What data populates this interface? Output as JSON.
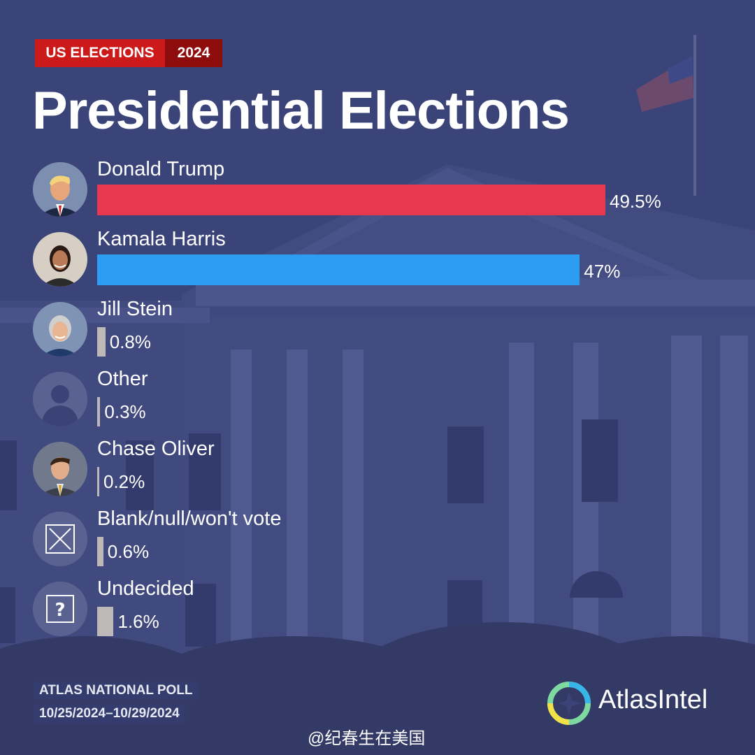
{
  "header": {
    "badge_left": "US ELECTIONS",
    "badge_right": "2024",
    "title": "Presidential Elections"
  },
  "colors": {
    "background": "#3b4479",
    "trump": "#e8384f",
    "harris": "#2d9df1",
    "minor": "#bdb9b9",
    "badge_red": "#cc1a1a",
    "badge_dark_red": "#8f0c0c"
  },
  "chart_data": {
    "type": "bar",
    "orientation": "horizontal",
    "title": "Presidential Elections",
    "categories": [
      "Donald Trump",
      "Kamala Harris",
      "Jill Stein",
      "Other",
      "Chase Oliver",
      "Blank/null/won't vote",
      "Undecided"
    ],
    "values": [
      49.5,
      47,
      0.8,
      0.3,
      0.2,
      0.6,
      1.6
    ],
    "value_labels": [
      "49.5%",
      "47%",
      "0.8%",
      "0.3%",
      "0.2%",
      "0.6%",
      "1.6%"
    ],
    "bar_colors": [
      "#e8384f",
      "#2d9df1",
      "#bdb9b9",
      "#bdb9b9",
      "#bdb9b9",
      "#bdb9b9",
      "#bdb9b9"
    ],
    "avatars": [
      "portrait-trump",
      "portrait-harris",
      "portrait-stein",
      "person-silhouette-icon",
      "portrait-oliver",
      "x-box-icon",
      "question-box-icon"
    ],
    "grid": false,
    "legend": "none"
  },
  "footer": {
    "poll_name": "ATLAS NATIONAL POLL",
    "poll_dates": "10/25/2024–10/29/2024",
    "brand": "AtlasIntel",
    "watermark": "@纪春生在美国"
  }
}
